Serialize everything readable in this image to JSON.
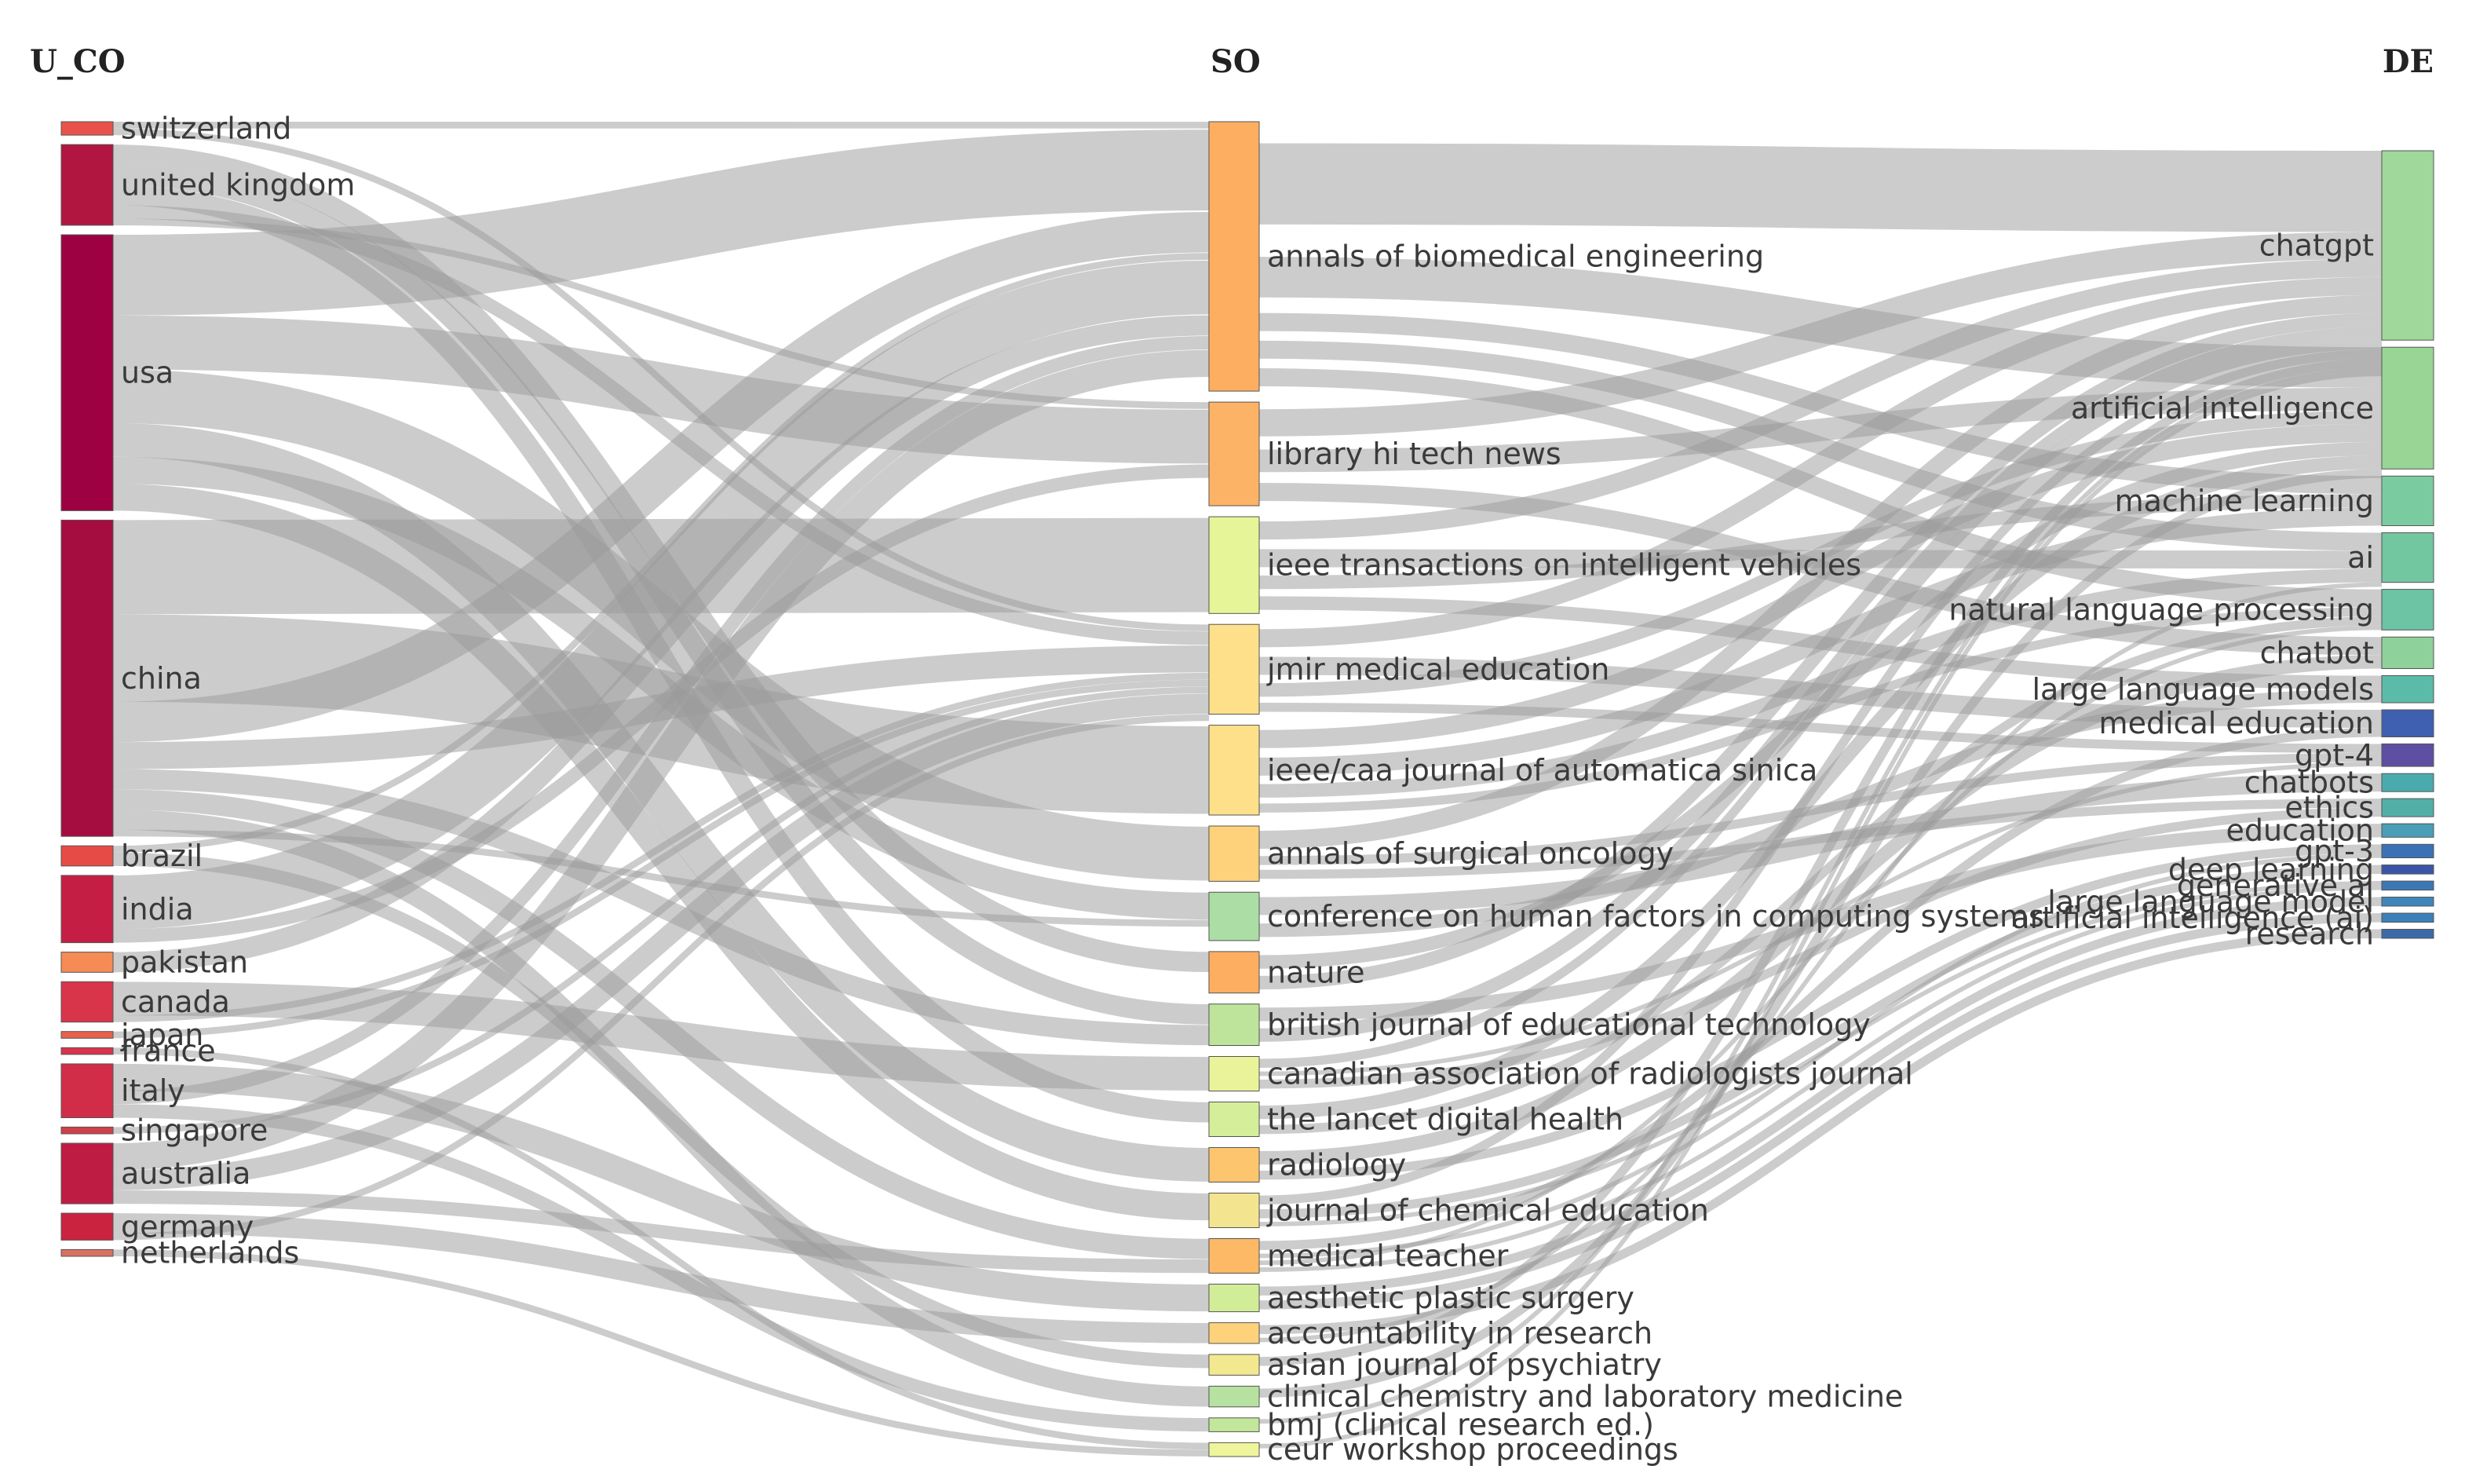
{
  "columns": [
    {
      "key": "U_CO",
      "title": "U_CO"
    },
    {
      "key": "SO",
      "title": "SO"
    },
    {
      "key": "DE",
      "title": "DE"
    }
  ],
  "nodes": {
    "U_CO": [
      {
        "id": "c_switzerland",
        "label": "switzerland",
        "value": 2,
        "color": "#e8524b"
      },
      {
        "id": "c_uk",
        "label": "united kingdom",
        "value": 12,
        "color": "#b0163f"
      },
      {
        "id": "c_usa",
        "label": "usa",
        "value": 41,
        "color": "#9e0142"
      },
      {
        "id": "c_china",
        "label": "china",
        "value": 47,
        "color": "#a50c40"
      },
      {
        "id": "c_brazil",
        "label": "brazil",
        "value": 3,
        "color": "#e64c45"
      },
      {
        "id": "c_india",
        "label": "india",
        "value": 10,
        "color": "#c51e44"
      },
      {
        "id": "c_pakistan",
        "label": "pakistan",
        "value": 3,
        "color": "#f58c55"
      },
      {
        "id": "c_canada",
        "label": "canada",
        "value": 6,
        "color": "#d8354a"
      },
      {
        "id": "c_japan",
        "label": "japan",
        "value": 1,
        "color": "#e8604c"
      },
      {
        "id": "c_france",
        "label": "france",
        "value": 1,
        "color": "#d8354a"
      },
      {
        "id": "c_italy",
        "label": "italy",
        "value": 8,
        "color": "#d22d48"
      },
      {
        "id": "c_singapore",
        "label": "singapore",
        "value": 1,
        "color": "#d04048"
      },
      {
        "id": "c_australia",
        "label": "australia",
        "value": 9,
        "color": "#bf1c44"
      },
      {
        "id": "c_germany",
        "label": "germany",
        "value": 4,
        "color": "#c9233f"
      },
      {
        "id": "c_netherlands",
        "label": "netherlands",
        "value": 1,
        "color": "#d87060"
      }
    ],
    "SO": [
      {
        "id": "s_abe",
        "label": "annals of biomedical engineering",
        "value": 39,
        "color": "#fdae61"
      },
      {
        "id": "s_lhtn",
        "label": "library hi tech news",
        "value": 15,
        "color": "#fdb365"
      },
      {
        "id": "s_ieeetiv",
        "label": "ieee transactions on intelligent vehicles",
        "value": 14,
        "color": "#e6f598"
      },
      {
        "id": "s_jmir",
        "label": "jmir medical education",
        "value": 13,
        "color": "#fee08b"
      },
      {
        "id": "s_ieeecaa",
        "label": "ieee/caa journal of automatica sinica",
        "value": 13,
        "color": "#fee08b"
      },
      {
        "id": "s_aso",
        "label": "annals of surgical oncology",
        "value": 8,
        "color": "#fed27a"
      },
      {
        "id": "s_chi",
        "label": "conference on human factors in computing systems",
        "value": 7,
        "color": "#abdda4"
      },
      {
        "id": "s_nature",
        "label": "nature",
        "value": 6,
        "color": "#fdae61"
      },
      {
        "id": "s_bjet",
        "label": "british journal of educational technology",
        "value": 6,
        "color": "#bde49a"
      },
      {
        "id": "s_carj",
        "label": "canadian association of radiologists journal",
        "value": 5,
        "color": "#eaf39a"
      },
      {
        "id": "s_tldh",
        "label": "the lancet digital health",
        "value": 5,
        "color": "#d5ee9a"
      },
      {
        "id": "s_radiology",
        "label": "radiology",
        "value": 5,
        "color": "#fdc66e"
      },
      {
        "id": "s_jce",
        "label": "journal of chemical education",
        "value": 5,
        "color": "#f3e590"
      },
      {
        "id": "s_mt",
        "label": "medical teacher",
        "value": 5,
        "color": "#fdb965"
      },
      {
        "id": "s_aps",
        "label": "aesthetic plastic surgery",
        "value": 4,
        "color": "#d2ed98"
      },
      {
        "id": "s_air",
        "label": "accountability in research",
        "value": 3,
        "color": "#fed27a"
      },
      {
        "id": "s_ajp",
        "label": "asian journal of psychiatry",
        "value": 3,
        "color": "#f2e88f"
      },
      {
        "id": "s_cclm",
        "label": "clinical chemistry and laboratory medicine",
        "value": 3,
        "color": "#b7e1a1"
      },
      {
        "id": "s_bmj",
        "label": "bmj (clinical research ed.)",
        "value": 2,
        "color": "#c3e79a"
      },
      {
        "id": "s_ceur",
        "label": "ceur workshop proceedings",
        "value": 2,
        "color": "#eef59a"
      }
    ],
    "DE": [
      {
        "id": "d_chatgpt",
        "label": "chatgpt",
        "value": 42,
        "color": "#9fd89a"
      },
      {
        "id": "d_ai_full",
        "label": "artificial intelligence",
        "value": 27,
        "color": "#99d594"
      },
      {
        "id": "d_ml",
        "label": "machine learning",
        "value": 11,
        "color": "#7acca0"
      },
      {
        "id": "d_ai",
        "label": "ai",
        "value": 11,
        "color": "#72c7a0"
      },
      {
        "id": "d_nlp",
        "label": "natural language processing",
        "value": 9,
        "color": "#6cc4a4"
      },
      {
        "id": "d_chatbot",
        "label": "chatbot",
        "value": 7,
        "color": "#8ed19a"
      },
      {
        "id": "d_llm",
        "label": "large language models",
        "value": 6,
        "color": "#5bbba9"
      },
      {
        "id": "d_meded",
        "label": "medical education",
        "value": 6,
        "color": "#3f5fb0"
      },
      {
        "id": "d_gpt4",
        "label": "gpt-4",
        "value": 5,
        "color": "#5e4fa2"
      },
      {
        "id": "d_chatbots",
        "label": "chatbots",
        "value": 4,
        "color": "#4aabae"
      },
      {
        "id": "d_ethics",
        "label": "ethics",
        "value": 4,
        "color": "#52afa8"
      },
      {
        "id": "d_education",
        "label": "education",
        "value": 3,
        "color": "#4a9eb8"
      },
      {
        "id": "d_gpt3",
        "label": "gpt-3",
        "value": 3,
        "color": "#3a72b5"
      },
      {
        "id": "d_dl",
        "label": "deep learning",
        "value": 2,
        "color": "#3a55a8"
      },
      {
        "id": "d_genai",
        "label": "generative ai",
        "value": 2,
        "color": "#3a78b5"
      },
      {
        "id": "d_llm2",
        "label": "large language model",
        "value": 2,
        "color": "#3f86ba"
      },
      {
        "id": "d_ai_paren",
        "label": "artificial intelligence (ai)",
        "value": 2,
        "color": "#3b80b9"
      },
      {
        "id": "d_research",
        "label": "research",
        "value": 2,
        "color": "#3c6aa8"
      }
    ]
  },
  "links_cs": [
    [
      "c_switzerland",
      "s_abe",
      1
    ],
    [
      "c_switzerland",
      "s_jmir",
      1
    ],
    [
      "c_uk",
      "s_nature",
      3
    ],
    [
      "c_uk",
      "s_bjet",
      3
    ],
    [
      "c_uk",
      "s_tldh",
      3
    ],
    [
      "c_uk",
      "s_jmir",
      2
    ],
    [
      "c_uk",
      "s_lhtn",
      1
    ],
    [
      "c_usa",
      "s_abe",
      12
    ],
    [
      "c_usa",
      "s_lhtn",
      8
    ],
    [
      "c_usa",
      "s_aso",
      8
    ],
    [
      "c_usa",
      "s_radiology",
      5
    ],
    [
      "c_usa",
      "s_chi",
      4
    ],
    [
      "c_usa",
      "s_jce",
      4
    ],
    [
      "c_china",
      "s_ieeetiv",
      14
    ],
    [
      "c_china",
      "s_ieeecaa",
      13
    ],
    [
      "c_china",
      "s_abe",
      6
    ],
    [
      "c_china",
      "s_jmir",
      4
    ],
    [
      "c_china",
      "s_bjet",
      3
    ],
    [
      "c_china",
      "s_mt",
      3
    ],
    [
      "c_china",
      "s_cclm",
      3
    ],
    [
      "c_china",
      "s_chi",
      1
    ],
    [
      "c_brazil",
      "s_abe",
      1
    ],
    [
      "c_brazil",
      "s_ajp",
      2
    ],
    [
      "c_india",
      "s_abe",
      8
    ],
    [
      "c_india",
      "s_lhtn",
      2
    ],
    [
      "c_pakistan",
      "s_abe",
      3
    ],
    [
      "c_canada",
      "s_carj",
      5
    ],
    [
      "c_canada",
      "s_jmir",
      1
    ],
    [
      "c_japan",
      "s_jmir",
      1
    ],
    [
      "c_france",
      "s_ceur",
      1
    ],
    [
      "c_italy",
      "s_aps",
      4
    ],
    [
      "c_italy",
      "s_abe",
      2
    ],
    [
      "c_italy",
      "s_bmj",
      2
    ],
    [
      "c_singapore",
      "s_jmir",
      1
    ],
    [
      "c_australia",
      "s_abe",
      4
    ],
    [
      "c_australia",
      "s_jmir",
      3
    ],
    [
      "c_australia",
      "s_mt",
      2
    ],
    [
      "c_germany",
      "s_air",
      3
    ],
    [
      "c_germany",
      "s_jmir",
      1
    ],
    [
      "c_netherlands",
      "s_ceur",
      1
    ]
  ],
  "links_sd": [
    [
      "s_abe",
      "d_chatgpt",
      18
    ],
    [
      "s_abe",
      "d_ai_full",
      9
    ],
    [
      "s_abe",
      "d_ml",
      4
    ],
    [
      "s_abe",
      "d_ai",
      4
    ],
    [
      "s_abe",
      "d_nlp",
      4
    ],
    [
      "s_lhtn",
      "d_chatgpt",
      6
    ],
    [
      "s_lhtn",
      "d_ai_full",
      5
    ],
    [
      "s_lhtn",
      "d_chatbot",
      4
    ],
    [
      "s_ieeetiv",
      "d_chatgpt",
      4
    ],
    [
      "s_ieeetiv",
      "d_ai",
      4
    ],
    [
      "s_ieeetiv",
      "d_ml",
      3
    ],
    [
      "s_ieeetiv",
      "d_llm",
      3
    ],
    [
      "s_jmir",
      "d_chatgpt",
      4
    ],
    [
      "s_jmir",
      "d_meded",
      4
    ],
    [
      "s_jmir",
      "d_ai_full",
      3
    ],
    [
      "s_jmir",
      "d_gpt4",
      2
    ],
    [
      "s_ieeecaa",
      "d_ai_full",
      4
    ],
    [
      "s_ieeecaa",
      "d_ml",
      4
    ],
    [
      "s_ieeecaa",
      "d_ai",
      3
    ],
    [
      "s_ieeecaa",
      "d_nlp",
      2
    ],
    [
      "s_aso",
      "d_chatgpt",
      4
    ],
    [
      "s_aso",
      "d_gpt4",
      2
    ],
    [
      "s_aso",
      "d_ethics",
      2
    ],
    [
      "s_chi",
      "d_chatbots",
      4
    ],
    [
      "s_chi",
      "d_llm",
      3
    ],
    [
      "s_nature",
      "d_ai_full",
      3
    ],
    [
      "s_nature",
      "d_chatgpt",
      3
    ],
    [
      "s_bjet",
      "d_education",
      3
    ],
    [
      "s_bjet",
      "d_chatgpt",
      3
    ],
    [
      "s_carj",
      "d_chatgpt",
      2
    ],
    [
      "s_carj",
      "d_gpt4",
      1
    ],
    [
      "s_carj",
      "d_ethics",
      2
    ],
    [
      "s_tldh",
      "d_ai_full",
      3
    ],
    [
      "s_tldh",
      "d_nlp",
      2
    ],
    [
      "s_radiology",
      "d_chatbot",
      3
    ],
    [
      "s_radiology",
      "d_gpt3",
      2
    ],
    [
      "s_jce",
      "d_chatgpt",
      2
    ],
    [
      "s_jce",
      "d_dl",
      2
    ],
    [
      "s_jce",
      "d_genai",
      1
    ],
    [
      "s_mt",
      "d_meded",
      2
    ],
    [
      "s_mt",
      "d_gpt3",
      1
    ],
    [
      "s_mt",
      "d_nlp",
      1
    ],
    [
      "s_mt",
      "d_genai",
      1
    ],
    [
      "s_aps",
      "d_llm2",
      2
    ],
    [
      "s_aps",
      "d_ai_paren",
      2
    ],
    [
      "s_air",
      "d_research",
      2
    ],
    [
      "s_air",
      "d_ai",
      1
    ],
    [
      "s_ajp",
      "d_chatgpt",
      2
    ],
    [
      "s_cclm",
      "d_ai_full",
      2
    ],
    [
      "s_bmj",
      "d_chatgpt",
      1
    ],
    [
      "s_ceur",
      "d_chatgpt",
      1
    ]
  ]
}
